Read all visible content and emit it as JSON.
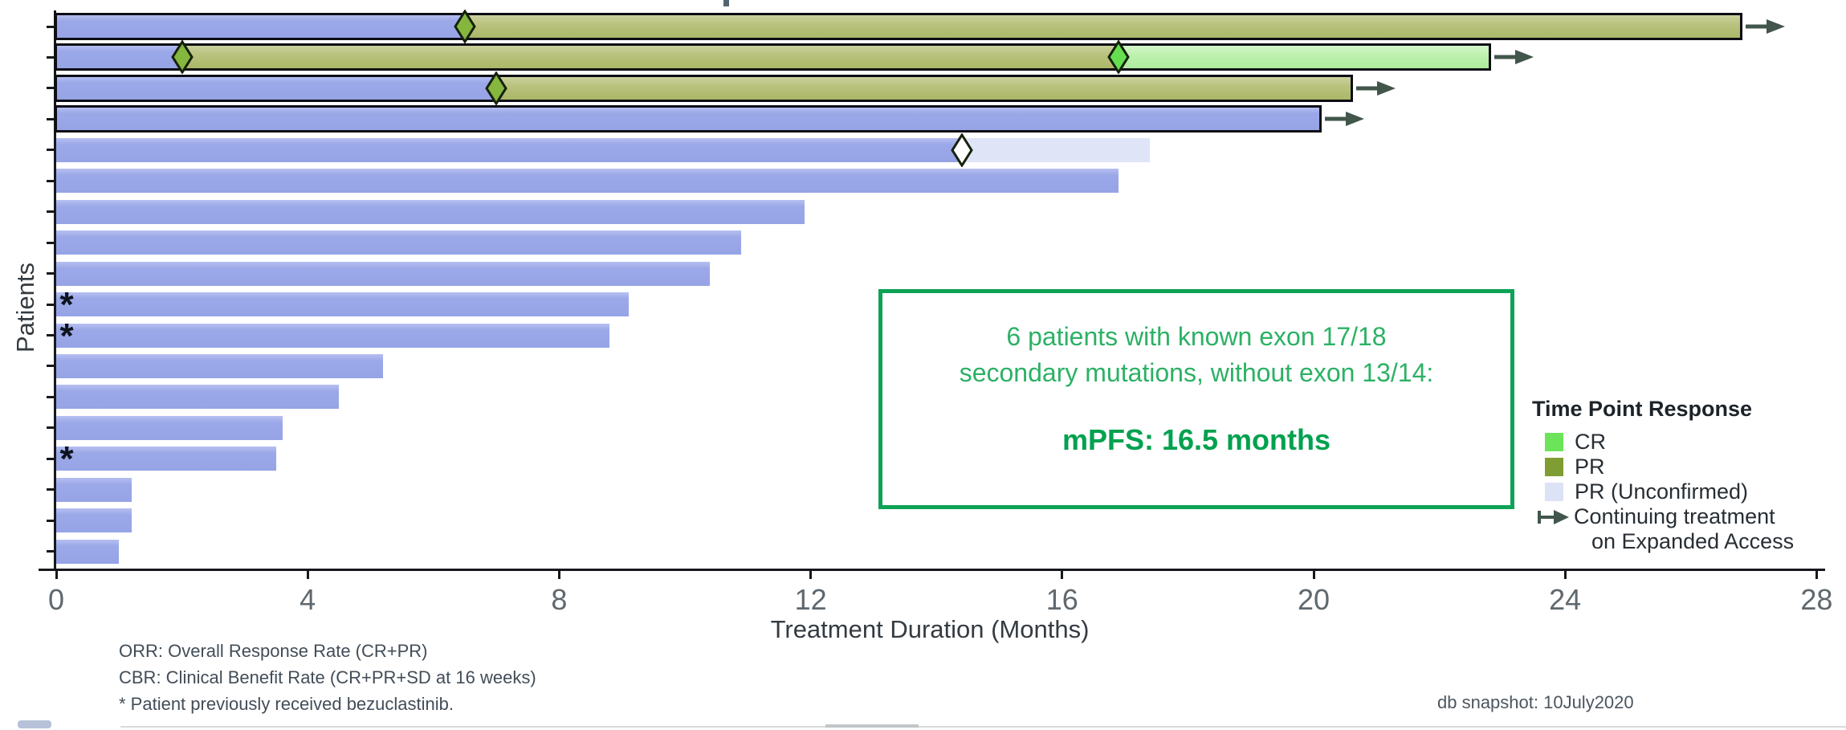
{
  "colors": {
    "bar_blue": "#9ba8e8",
    "pr_fill": "#b9c37e",
    "cr_fill": "#bdf0ae",
    "pr_unconfirmed_fill": "#dfe4f7",
    "diamond_pr": "#85b63e",
    "diamond_cr": "#65df50",
    "diamond_open": "#ffffff",
    "marker_stroke": "#16210d",
    "arrow": "#42564c",
    "bar_outline": "#0d0d15",
    "axis": "#17181c",
    "legend_CR": "#6ce45a",
    "legend_PR": "#7f9d33",
    "legend_PR_unconfirmed": "#dde3f6",
    "box_border": "#0ea257",
    "box_text": "#2cb165",
    "box_highlight_text": "#00a14f"
  },
  "chart_data": {
    "type": "bar",
    "subtype": "swimmer-plot",
    "title": "",
    "xlabel": "Treatment Duration (Months)",
    "ylabel": "Patients",
    "xlim": [
      0,
      28
    ],
    "xticks": [
      0,
      4,
      8,
      12,
      16,
      20,
      24,
      28
    ],
    "units": "months",
    "legend_position": "right",
    "grid": false,
    "patients": [
      {
        "outlined": true,
        "continuing": true,
        "asterisk": false,
        "segments": [
          {
            "response": "untyped",
            "start": 0,
            "end": 6.5
          },
          {
            "response": "PR",
            "start": 6.5,
            "end": 26.8
          }
        ],
        "markers": [
          {
            "response": "PR",
            "x": 6.5
          }
        ]
      },
      {
        "outlined": true,
        "continuing": true,
        "asterisk": false,
        "segments": [
          {
            "response": "untyped",
            "start": 0,
            "end": 2.0
          },
          {
            "response": "PR",
            "start": 2.0,
            "end": 16.9
          },
          {
            "response": "CR",
            "start": 16.9,
            "end": 22.8
          }
        ],
        "markers": [
          {
            "response": "PR",
            "x": 2.0
          },
          {
            "response": "CR",
            "x": 16.9
          }
        ]
      },
      {
        "outlined": true,
        "continuing": true,
        "asterisk": false,
        "segments": [
          {
            "response": "untyped",
            "start": 0,
            "end": 7.0
          },
          {
            "response": "PR",
            "start": 7.0,
            "end": 20.6
          }
        ],
        "markers": [
          {
            "response": "PR",
            "x": 7.0
          }
        ]
      },
      {
        "outlined": true,
        "continuing": true,
        "asterisk": false,
        "segments": [
          {
            "response": "untyped",
            "start": 0,
            "end": 20.1
          }
        ],
        "markers": []
      },
      {
        "outlined": false,
        "continuing": false,
        "asterisk": false,
        "segments": [
          {
            "response": "untyped",
            "start": 0,
            "end": 14.4
          },
          {
            "response": "PR_unconfirmed",
            "start": 14.4,
            "end": 17.4
          }
        ],
        "markers": [
          {
            "response": "PR_unconfirmed",
            "x": 14.4
          }
        ]
      },
      {
        "outlined": false,
        "continuing": false,
        "asterisk": false,
        "segments": [
          {
            "response": "untyped",
            "start": 0,
            "end": 16.9
          }
        ],
        "markers": []
      },
      {
        "outlined": false,
        "continuing": false,
        "asterisk": false,
        "segments": [
          {
            "response": "untyped",
            "start": 0,
            "end": 11.9
          }
        ],
        "markers": []
      },
      {
        "outlined": false,
        "continuing": false,
        "asterisk": false,
        "segments": [
          {
            "response": "untyped",
            "start": 0,
            "end": 10.9
          }
        ],
        "markers": []
      },
      {
        "outlined": false,
        "continuing": false,
        "asterisk": false,
        "segments": [
          {
            "response": "untyped",
            "start": 0,
            "end": 10.4
          }
        ],
        "markers": []
      },
      {
        "outlined": false,
        "continuing": false,
        "asterisk": true,
        "segments": [
          {
            "response": "untyped",
            "start": 0,
            "end": 9.1
          }
        ],
        "markers": []
      },
      {
        "outlined": false,
        "continuing": false,
        "asterisk": true,
        "segments": [
          {
            "response": "untyped",
            "start": 0,
            "end": 8.8
          }
        ],
        "markers": []
      },
      {
        "outlined": false,
        "continuing": false,
        "asterisk": false,
        "segments": [
          {
            "response": "untyped",
            "start": 0,
            "end": 5.2
          }
        ],
        "markers": []
      },
      {
        "outlined": false,
        "continuing": false,
        "asterisk": false,
        "segments": [
          {
            "response": "untyped",
            "start": 0,
            "end": 4.5
          }
        ],
        "markers": []
      },
      {
        "outlined": false,
        "continuing": false,
        "asterisk": false,
        "segments": [
          {
            "response": "untyped",
            "start": 0,
            "end": 3.6
          }
        ],
        "markers": []
      },
      {
        "outlined": false,
        "continuing": false,
        "asterisk": true,
        "segments": [
          {
            "response": "untyped",
            "start": 0,
            "end": 3.5
          }
        ],
        "markers": []
      },
      {
        "outlined": false,
        "continuing": false,
        "asterisk": false,
        "segments": [
          {
            "response": "untyped",
            "start": 0,
            "end": 1.2
          }
        ],
        "markers": []
      },
      {
        "outlined": false,
        "continuing": false,
        "asterisk": false,
        "segments": [
          {
            "response": "untyped",
            "start": 0,
            "end": 1.2
          }
        ],
        "markers": []
      },
      {
        "outlined": false,
        "continuing": false,
        "asterisk": false,
        "segments": [
          {
            "response": "untyped",
            "start": 0,
            "end": 1.0
          }
        ],
        "markers": []
      }
    ]
  },
  "legend": {
    "title": "Time Point Response",
    "items": [
      {
        "key": "legend_CR",
        "label": "CR"
      },
      {
        "key": "legend_PR",
        "label": "PR"
      },
      {
        "key": "legend_PR_unconfirmed",
        "label": "PR (Unconfirmed)"
      }
    ],
    "continuing_line1": "Continuing treatment",
    "continuing_line2": "on Expanded Access"
  },
  "annotation_box": {
    "line1": "6 patients with known exon 17/18",
    "line2": "secondary mutations, without exon 13/14:",
    "highlight": "mPFS: 16.5 months"
  },
  "footnotes": [
    "ORR: Overall Response Rate (CR+PR)",
    "CBR: Clinical Benefit Rate (CR+PR+SD at 16 weeks)",
    "* Patient previously received bezuclastinib."
  ],
  "db_snapshot": "db snapshot: 10July2020"
}
